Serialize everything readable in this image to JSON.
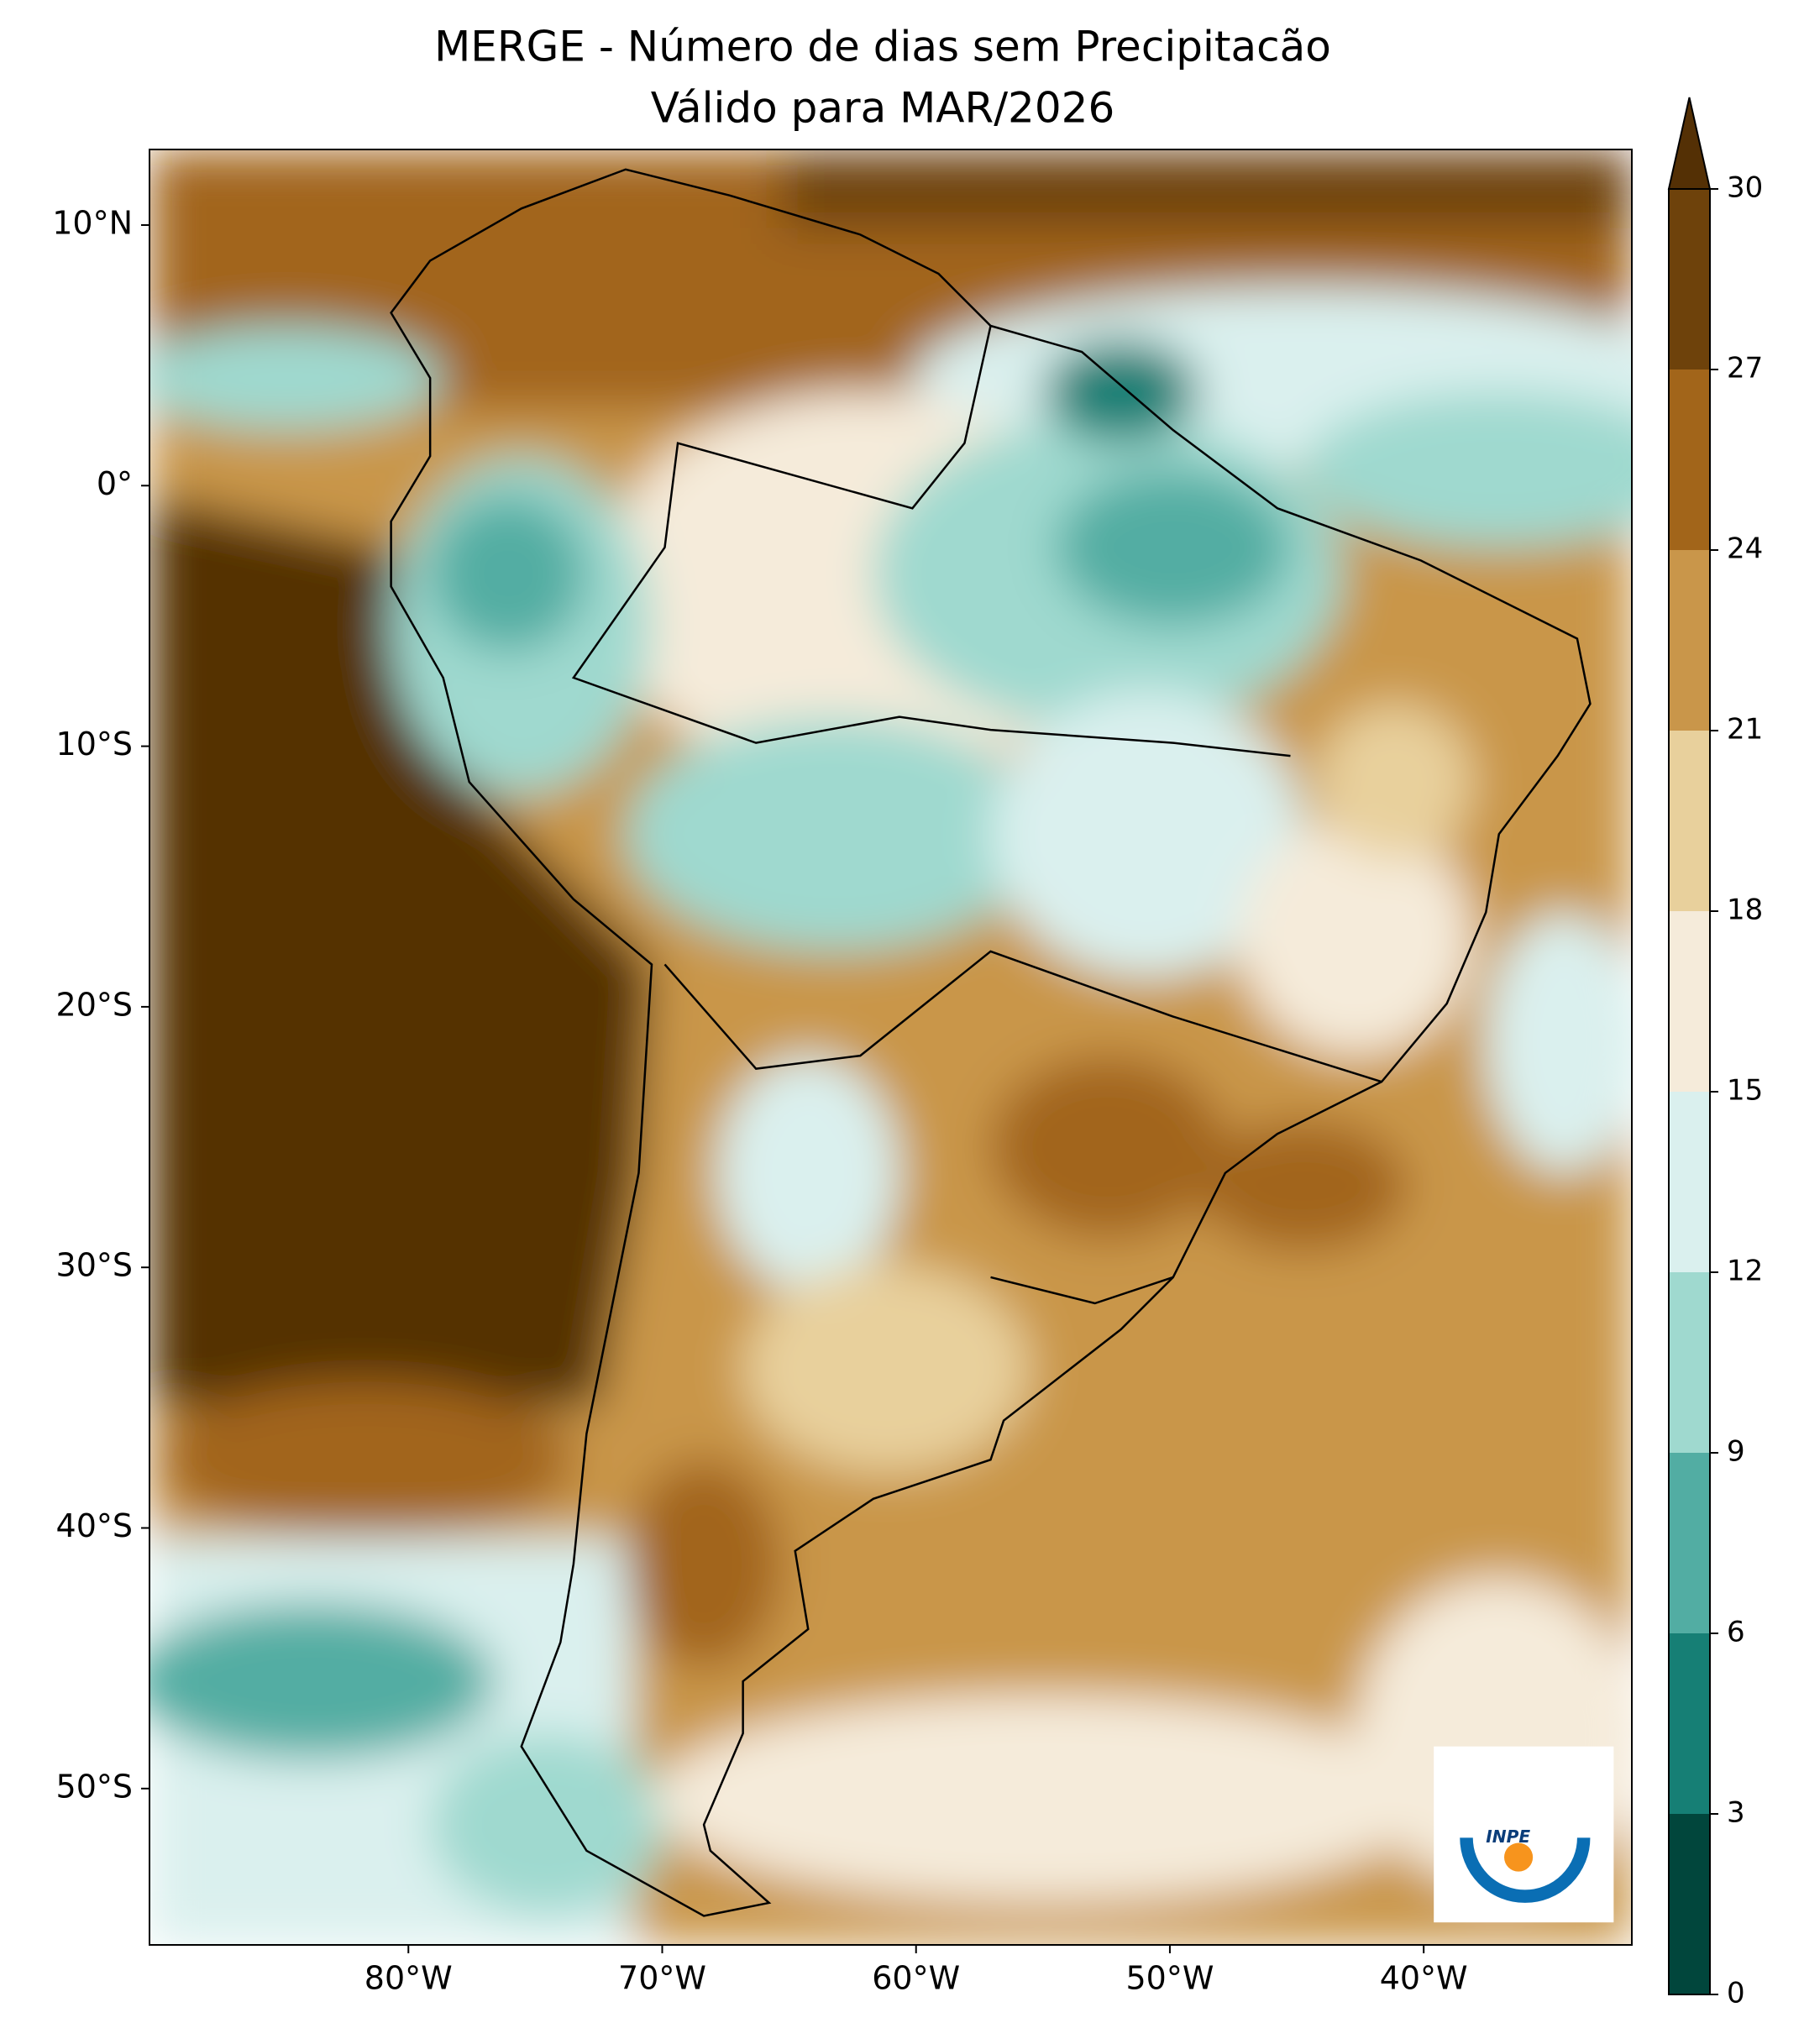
{
  "chart_data": {
    "type": "map",
    "title": "MERGE - Número de dias sem Precipitacão",
    "subtitle": "Válido para MAR/2026",
    "xlim": [
      -90.2,
      -31.8
    ],
    "ylim": [
      -56,
      12.9
    ],
    "xticks": [
      {
        "value": -80,
        "label": "80°W"
      },
      {
        "value": -70,
        "label": "70°W"
      },
      {
        "value": -60,
        "label": "60°W"
      },
      {
        "value": -50,
        "label": "50°W"
      },
      {
        "value": -40,
        "label": "40°W"
      }
    ],
    "yticks": [
      {
        "value": 10,
        "label": "10°N"
      },
      {
        "value": 0,
        "label": "0°"
      },
      {
        "value": -10,
        "label": "10°S"
      },
      {
        "value": -20,
        "label": "20°S"
      },
      {
        "value": -30,
        "label": "30°S"
      },
      {
        "value": -40,
        "label": "40°S"
      },
      {
        "value": -50,
        "label": "50°S"
      }
    ],
    "colorbar": {
      "lim": [
        0,
        30
      ],
      "ticks": [
        0,
        3,
        6,
        9,
        12,
        15,
        18,
        21,
        24,
        27,
        30
      ],
      "colors": [
        "#01463c",
        "#167f75",
        "#52ada3",
        "#9fd9cf",
        "#daf0ee",
        "#f5ebda",
        "#e8d09c",
        "#c9964a",
        "#a2651a",
        "#6e420b"
      ],
      "extend_color": "#543005"
    },
    "logo": "INPE"
  }
}
